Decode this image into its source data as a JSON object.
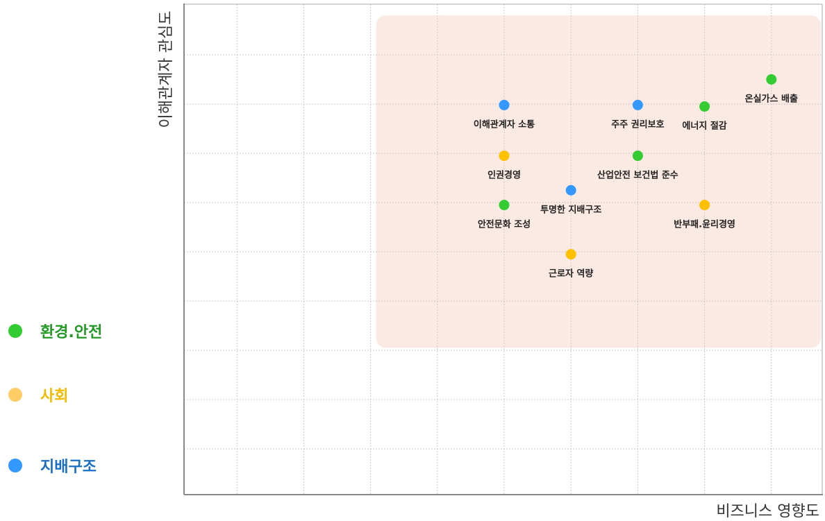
{
  "chart_data": {
    "type": "scatter",
    "xlabel": "비즈니스 영향도",
    "ylabel": "이해관계자 관심도",
    "xlim": [
      0,
      10
    ],
    "ylim": [
      0,
      10
    ],
    "grid": true,
    "legend_position": "left",
    "highlight_region": {
      "x": [
        3,
        10
      ],
      "y": [
        3.05,
        9.8
      ]
    },
    "series": [
      {
        "name": "환경.안전",
        "color": "#33CC33",
        "points": [
          {
            "label": "온실가스 배출",
            "x": 9.0,
            "y": 8.5
          },
          {
            "label": "에너지 절감",
            "x": 8.0,
            "y": 7.95
          },
          {
            "label": "산업안전 보건법 준수",
            "x": 7.0,
            "y": 6.95
          },
          {
            "label": "안전문화 조성",
            "x": 5.0,
            "y": 5.95
          }
        ]
      },
      {
        "name": "사회",
        "color": "#FFC000",
        "points": [
          {
            "label": "인권경영",
            "x": 5.0,
            "y": 6.95
          },
          {
            "label": "반부패.윤리경영",
            "x": 8.0,
            "y": 5.95
          },
          {
            "label": "근로자 역량",
            "x": 6.0,
            "y": 4.95
          }
        ]
      },
      {
        "name": "지배구조",
        "color": "#3399FF",
        "points": [
          {
            "label": "이해관계자 소통",
            "x": 5.0,
            "y": 7.98
          },
          {
            "label": "주주 권리보호",
            "x": 7.0,
            "y": 7.98
          },
          {
            "label": "투명한 지배구조",
            "x": 6.0,
            "y": 6.25
          }
        ]
      }
    ]
  },
  "legend": {
    "items": [
      {
        "label": "환경.안전",
        "dot_color": "#33CC33",
        "text_color": "#229922"
      },
      {
        "label": "사회",
        "dot_color": "#FFCC66",
        "text_color": "#F2BB00"
      },
      {
        "label": "지배구조",
        "dot_color": "#3399FF",
        "text_color": "#1A6FC4"
      }
    ]
  }
}
